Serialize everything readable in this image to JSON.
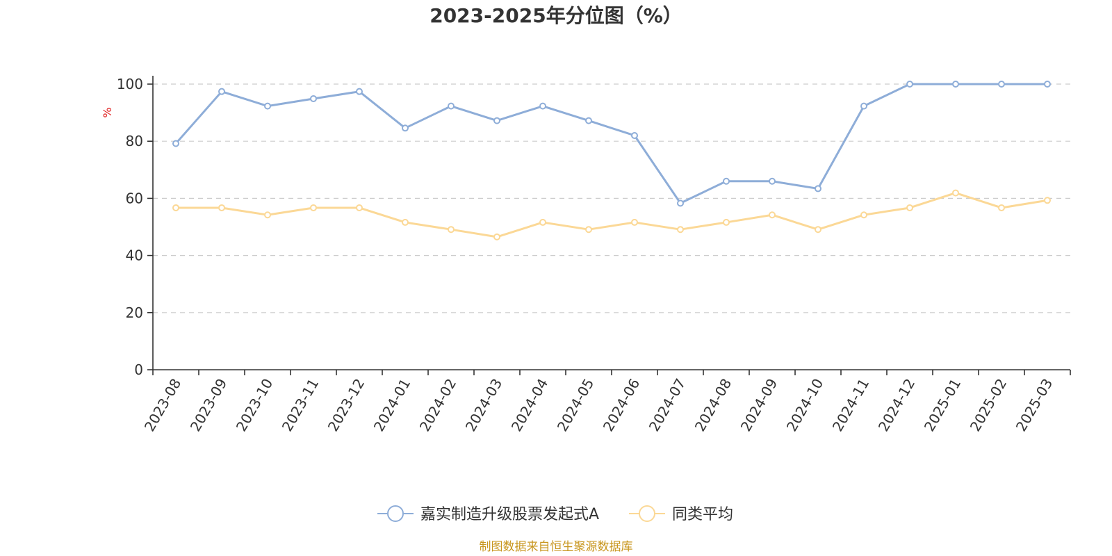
{
  "chart_data": {
    "type": "line",
    "title": "2023-2025年分位图（%）",
    "ylabel": "%",
    "xlabel": "",
    "ylim": [
      0,
      100
    ],
    "yticks": [
      0,
      20,
      40,
      60,
      80,
      100
    ],
    "grid": true,
    "legend_position": "bottom",
    "categories": [
      "2023-08",
      "2023-09",
      "2023-10",
      "2023-11",
      "2023-12",
      "2024-01",
      "2024-02",
      "2024-03",
      "2024-04",
      "2024-05",
      "2024-06",
      "2024-07",
      "2024-08",
      "2024-09",
      "2024-10",
      "2024-11",
      "2024-12",
      "2025-01",
      "2025-02",
      "2025-03"
    ],
    "series": [
      {
        "name": "嘉实制造升级股票发起式A",
        "color": "#8eadd8",
        "values": [
          79.2,
          97.4,
          92.3,
          94.9,
          97.4,
          84.6,
          92.3,
          87.2,
          92.3,
          87.2,
          82.0,
          58.3,
          66.0,
          66.0,
          63.4,
          92.3,
          100,
          100,
          100,
          100
        ]
      },
      {
        "name": "同类平均",
        "color": "#fbd896",
        "values": [
          56.7,
          56.7,
          54.2,
          56.7,
          56.7,
          51.6,
          49.1,
          46.5,
          51.6,
          49.1,
          51.6,
          49.1,
          51.6,
          54.2,
          49.1,
          54.2,
          56.7,
          61.9,
          56.7,
          59.3
        ]
      }
    ]
  },
  "source": "制图数据来自恒生聚源数据库"
}
